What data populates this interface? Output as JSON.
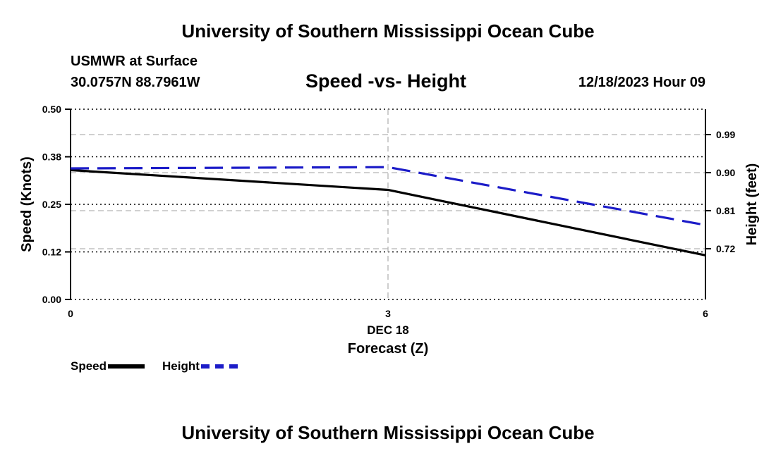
{
  "header": {
    "title": "University of Southern Mississippi Ocean Cube",
    "station": "USMWR at Surface",
    "coords": "30.0757N  88.7961W",
    "subtitle": "Speed -vs- Height",
    "datetime": "12/18/2023 Hour 09"
  },
  "footer": {
    "title": "University of Southern Mississippi Ocean Cube"
  },
  "legend": {
    "speed_label": "Speed",
    "height_label": "Height"
  },
  "colors": {
    "speed": "#000000",
    "height": "#1c1cc8",
    "grid": "#b4b4b4"
  },
  "chart_data": {
    "type": "line",
    "title": "Speed -vs- Height",
    "xlabel": "Forecast (Z)",
    "x_date_label": "DEC 18",
    "x": [
      0,
      3,
      6
    ],
    "x_ticks": [
      "0",
      "3",
      "6"
    ],
    "xlim": [
      0,
      6
    ],
    "ylabel_left": "Speed (Knots)",
    "ylim_left": [
      0,
      0.5
    ],
    "yticks_left": [
      "0.00",
      "0.12",
      "0.25",
      "0.38",
      "0.50"
    ],
    "ylabel_right": "Height (feet)",
    "ylim_right": [
      0.6,
      1.05
    ],
    "yticks_right": [
      {
        "label": "0.72",
        "value": 0.72
      },
      {
        "label": "0.81",
        "value": 0.81
      },
      {
        "label": "0.90",
        "value": 0.9
      },
      {
        "label": "0.99",
        "value": 0.99
      }
    ],
    "grid": true,
    "legend_position": "bottom-left",
    "series": [
      {
        "name": "Speed",
        "axis": "left",
        "style": "solid",
        "values": [
          0.34,
          0.288,
          0.116
        ]
      },
      {
        "name": "Height",
        "axis": "right",
        "style": "dashed",
        "values": [
          0.91,
          0.913,
          0.776
        ]
      }
    ]
  }
}
